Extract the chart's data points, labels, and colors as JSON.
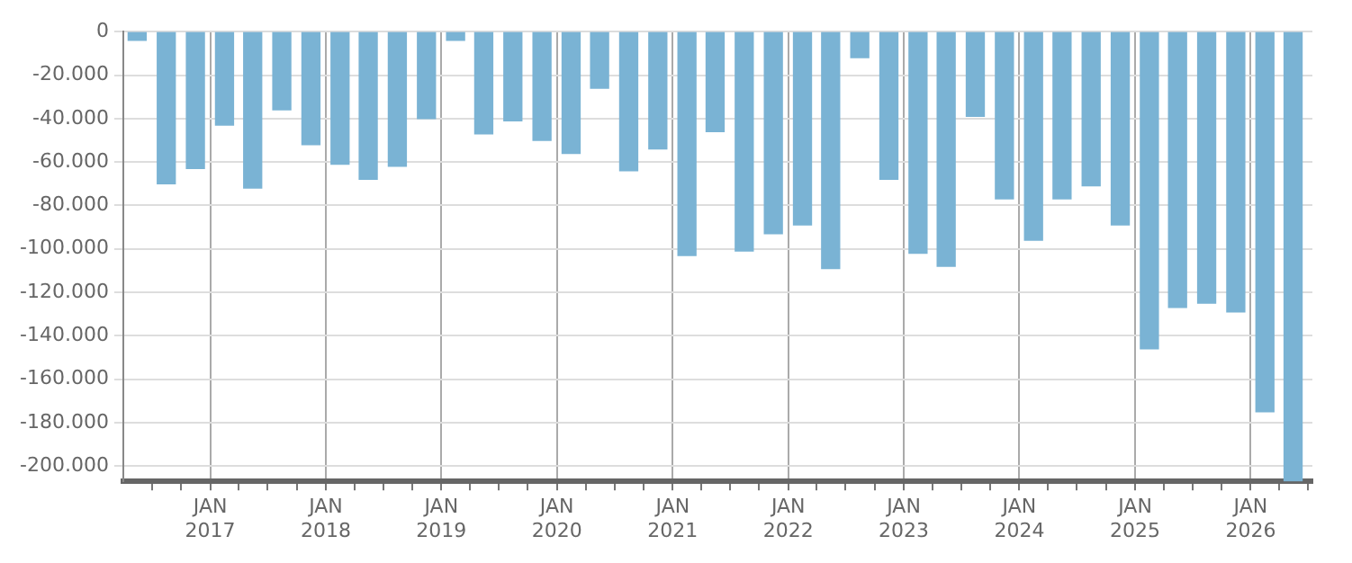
{
  "chart_data": {
    "type": "bar",
    "color": "#7ab3d4",
    "x": [
      "2016-05-15",
      "2016-08-15",
      "2016-11-15",
      "2017-02-15",
      "2017-05-15",
      "2017-08-15",
      "2017-11-15",
      "2018-02-15",
      "2018-05-15",
      "2018-08-15",
      "2018-11-15",
      "2019-02-15",
      "2019-05-15",
      "2019-08-15",
      "2019-11-15",
      "2020-02-15",
      "2020-05-15",
      "2020-08-15",
      "2020-11-15",
      "2021-02-15",
      "2021-05-15",
      "2021-08-15",
      "2021-11-15",
      "2022-02-15",
      "2022-05-15",
      "2022-08-15",
      "2022-11-15",
      "2023-02-15",
      "2023-05-15",
      "2023-08-15",
      "2023-11-15",
      "2024-02-15",
      "2024-05-15",
      "2024-08-15",
      "2024-11-15",
      "2025-02-15",
      "2025-05-15",
      "2025-08-15",
      "2025-11-15",
      "2026-02-15",
      "2026-05-15"
    ],
    "values": [
      -4000,
      -70000,
      -63000,
      -43000,
      -72000,
      -36000,
      -52000,
      -61000,
      -68000,
      -62000,
      -40000,
      -4000,
      -47000,
      -41000,
      -50000,
      -56000,
      -26000,
      -64000,
      -54000,
      -103000,
      -46000,
      -101000,
      -93000,
      -89000,
      -109000,
      -12000,
      -68000,
      -102000,
      -108000,
      -39000,
      -77000,
      -96000,
      -77000,
      -71000,
      -89000,
      -146000,
      -127000,
      -125000,
      -129000,
      -175000,
      -207000
    ],
    "xlim": [
      "2016-04-01",
      "2026-07-15"
    ],
    "xticks": [
      {
        "value": "2016-07-01",
        "label": null
      },
      {
        "value": "2016-10-01",
        "label": null
      },
      {
        "value": "2017-01-01",
        "label": "JAN 2017"
      },
      {
        "value": "2017-04-01",
        "label": null
      },
      {
        "value": "2017-07-01",
        "label": null
      },
      {
        "value": "2017-10-01",
        "label": null
      },
      {
        "value": "2018-01-01",
        "label": "JAN 2018"
      },
      {
        "value": "2018-04-01",
        "label": null
      },
      {
        "value": "2018-07-01",
        "label": null
      },
      {
        "value": "2018-10-01",
        "label": null
      },
      {
        "value": "2019-01-01",
        "label": "JAN 2019"
      },
      {
        "value": "2019-04-01",
        "label": null
      },
      {
        "value": "2019-07-01",
        "label": null
      },
      {
        "value": "2019-10-01",
        "label": null
      },
      {
        "value": "2020-01-01",
        "label": "JAN 2020"
      },
      {
        "value": "2020-04-01",
        "label": null
      },
      {
        "value": "2020-07-01",
        "label": null
      },
      {
        "value": "2020-10-01",
        "label": null
      },
      {
        "value": "2021-01-01",
        "label": "JAN 2021"
      },
      {
        "value": "2021-04-01",
        "label": null
      },
      {
        "value": "2021-07-01",
        "label": null
      },
      {
        "value": "2021-10-01",
        "label": null
      },
      {
        "value": "2022-01-01",
        "label": "JAN 2022"
      },
      {
        "value": "2022-04-01",
        "label": null
      },
      {
        "value": "2022-07-01",
        "label": null
      },
      {
        "value": "2022-10-01",
        "label": null
      },
      {
        "value": "2023-01-01",
        "label": "JAN 2023"
      },
      {
        "value": "2023-04-01",
        "label": null
      },
      {
        "value": "2023-07-01",
        "label": null
      },
      {
        "value": "2023-10-01",
        "label": null
      },
      {
        "value": "2024-01-01",
        "label": "JAN 2024"
      },
      {
        "value": "2024-04-01",
        "label": null
      },
      {
        "value": "2024-07-01",
        "label": null
      },
      {
        "value": "2024-10-01",
        "label": null
      },
      {
        "value": "2025-01-01",
        "label": "JAN 2025"
      },
      {
        "value": "2025-04-01",
        "label": null
      },
      {
        "value": "2025-07-01",
        "label": null
      },
      {
        "value": "2025-10-01",
        "label": null
      },
      {
        "value": "2026-01-01",
        "label": "JAN 2026"
      },
      {
        "value": "2026-04-01",
        "label": null
      },
      {
        "value": "2026-07-01",
        "label": null
      }
    ],
    "ylim": [
      -207000,
      0
    ],
    "yticks": [
      0,
      {
        "value": -20000,
        "label": "-20.000"
      },
      {
        "value": -40000,
        "label": "-40.000"
      },
      {
        "value": -60000,
        "label": "-60.000"
      },
      {
        "value": -80000,
        "label": "-80.000"
      },
      {
        "value": -100000,
        "label": "-100.000"
      },
      {
        "value": -120000,
        "label": "-120.000"
      },
      {
        "value": -140000,
        "label": "-140.000"
      },
      {
        "value": -160000,
        "label": "-160.000"
      },
      {
        "value": -180000,
        "label": "-180.000"
      },
      {
        "value": -200000,
        "label": "-200.000"
      }
    ],
    "grid": true
  }
}
